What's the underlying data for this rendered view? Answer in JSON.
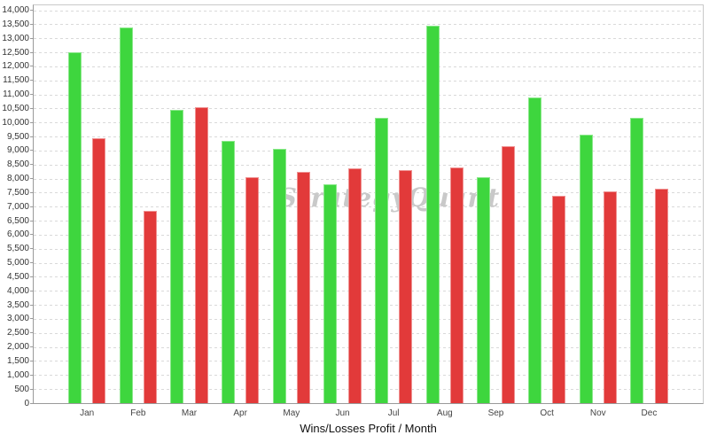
{
  "chart_data": {
    "type": "bar",
    "title": "Wins/Losses Profit / Month",
    "watermark": "StrategyQuant",
    "categories": [
      "Jan",
      "Feb",
      "Mar",
      "Apr",
      "May",
      "Jun",
      "Jul",
      "Aug",
      "Sep",
      "Oct",
      "Nov",
      "Dec"
    ],
    "series": [
      {
        "name": "Wins",
        "color": "#3ed63e",
        "values": [
          12500,
          13400,
          10450,
          9350,
          9050,
          7800,
          10150,
          13450,
          8050,
          10900,
          9550,
          10150
        ]
      },
      {
        "name": "Losses",
        "color": "#e23a3a",
        "values": [
          9450,
          6850,
          10550,
          8050,
          8250,
          8350,
          8300,
          8400,
          9150,
          7400,
          7550,
          7650
        ]
      }
    ],
    "xlabel": "Wins/Losses Profit / Month",
    "ylabel": "",
    "ylim": [
      0,
      14150
    ],
    "y_tick_step": 500,
    "y_tick_labels": [
      "0",
      "500",
      "1,000",
      "1,500",
      "2,000",
      "2,500",
      "3,000",
      "3,500",
      "4,000",
      "4,500",
      "5,000",
      "5,500",
      "6,000",
      "6,500",
      "7,000",
      "7,500",
      "8,000",
      "8,500",
      "9,000",
      "9,500",
      "10,000",
      "10,500",
      "11,000",
      "11,500",
      "12,000",
      "12,500",
      "13,000",
      "13,500",
      "14,000"
    ],
    "grid": "horizontal-dashed",
    "gridline_color": "#d9d9d9",
    "legend": "none",
    "background": "#ffffff"
  }
}
